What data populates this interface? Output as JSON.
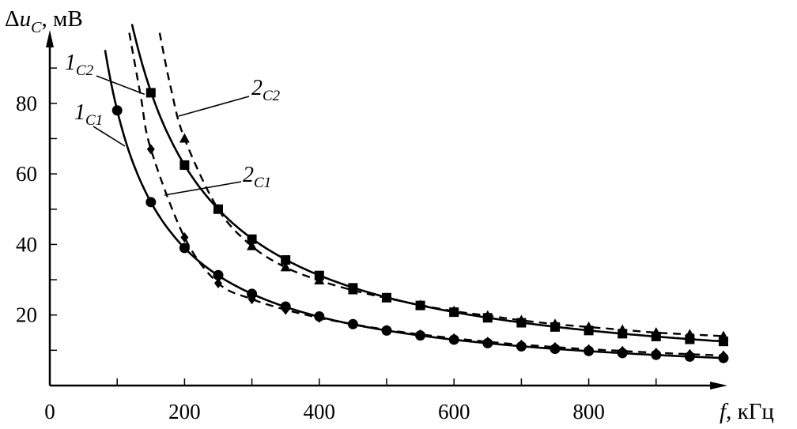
{
  "chart_data": {
    "type": "line",
    "title": "",
    "ylabel_delta": "Δ",
    "ylabel_var": "u",
    "ylabel_sub": "C",
    "ylabel_unit": ", мВ",
    "xlabel_var": "f",
    "xlabel_unit": ", кГц",
    "xlim": [
      0,
      1000
    ],
    "ylim": [
      0,
      100
    ],
    "x_ticks": [
      0,
      200,
      400,
      600,
      800
    ],
    "x_tick_labels": [
      "0",
      "200",
      "400",
      "600",
      "800"
    ],
    "y_ticks": [
      20,
      40,
      60,
      80
    ],
    "y_tick_labels": [
      "20",
      "40",
      "60",
      "80"
    ],
    "grid": false,
    "series": [
      {
        "name": "1C1",
        "label_main": "1",
        "label_sub": "C1",
        "line": "solid",
        "marker": "circle",
        "x": [
          100,
          150,
          200,
          250,
          300,
          350,
          400,
          450,
          500,
          550,
          600,
          650,
          700,
          750,
          800,
          850,
          900,
          950,
          1000
        ],
        "y": [
          78,
          52,
          39,
          31.3,
          26,
          22.4,
          19.6,
          17.4,
          15.6,
          14.2,
          13,
          12,
          11.1,
          10.4,
          9.8,
          9.2,
          8.7,
          8.2,
          7.8
        ]
      },
      {
        "name": "2C1",
        "label_main": "2",
        "label_sub": "C1",
        "line": "dashed",
        "marker": "diamond",
        "x": [
          150,
          200,
          250,
          300,
          350,
          400,
          450,
          500,
          550,
          600,
          650,
          700,
          750,
          800,
          850,
          900,
          950,
          1000
        ],
        "y": [
          67,
          42,
          29,
          24.5,
          21.5,
          19.2,
          17.4,
          15.8,
          14.5,
          13.4,
          12.4,
          11.6,
          10.9,
          10.3,
          9.8,
          9.3,
          8.9,
          8.5
        ]
      },
      {
        "name": "1C2",
        "label_main": "1",
        "label_sub": "C2",
        "line": "solid",
        "marker": "square",
        "x": [
          150,
          200,
          250,
          300,
          350,
          400,
          450,
          500,
          550,
          600,
          650,
          700,
          750,
          800,
          850,
          900,
          950,
          1000
        ],
        "y": [
          83,
          62.5,
          50,
          41.5,
          35.6,
          31.2,
          27.7,
          24.9,
          22.7,
          20.8,
          19.2,
          17.8,
          16.6,
          15.6,
          14.7,
          13.9,
          13.1,
          12.5
        ]
      },
      {
        "name": "2C2",
        "label_main": "2",
        "label_sub": "C2",
        "line": "dashed",
        "marker": "triangle",
        "x": [
          200,
          250,
          300,
          350,
          400,
          450,
          500,
          550,
          600,
          650,
          700,
          750,
          800,
          850,
          900,
          950,
          1000
        ],
        "y": [
          70,
          50,
          39.5,
          33.5,
          29.8,
          27,
          24.8,
          22.8,
          21.1,
          19.8,
          18.5,
          17.4,
          16.6,
          15.8,
          15,
          14.5,
          14
        ]
      }
    ]
  }
}
